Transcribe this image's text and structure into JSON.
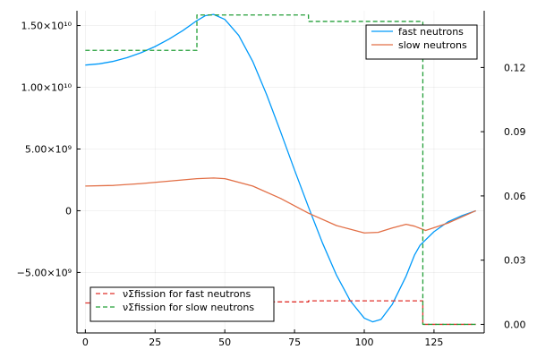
{
  "chart_data": {
    "type": "line",
    "title": "",
    "xlabel": "",
    "ylabel_left": "",
    "ylabel_right": "",
    "grid": true,
    "x_ticks": [
      "0",
      "25",
      "50",
      "75",
      "100",
      "125"
    ],
    "x_tick_values": [
      0,
      25,
      50,
      75,
      100,
      125
    ],
    "xlim": [
      -3,
      143
    ],
    "left_axis": {
      "ylim": [
        -9900000000.0,
        16200000000.0
      ],
      "tick_values": [
        -5000000000.0,
        0,
        5000000000.0,
        10000000000.0,
        15000000000.0
      ],
      "tick_labels": [
        "−5.00×10⁹",
        "0",
        "5.00×10⁹",
        "1.00×10¹⁰",
        "1.50×10¹⁰"
      ]
    },
    "right_axis": {
      "ylim": [
        -0.004,
        0.1465
      ],
      "tick_values": [
        0.0,
        0.03,
        0.06,
        0.09,
        0.12
      ],
      "tick_labels": [
        "0.00",
        "0.03",
        "0.06",
        "0.09",
        "0.12"
      ]
    },
    "legends": [
      {
        "placement": "top-right",
        "entries": [
          {
            "label": "fast neutrons",
            "color": "#009AFA",
            "dash": "solid"
          },
          {
            "label": "slow neutrons",
            "color": "#E26F46",
            "dash": "solid"
          }
        ]
      },
      {
        "placement": "bottom-left",
        "entries": [
          {
            "label": "νΣfission for fast neutrons",
            "color": "#E0312B",
            "dash": "dashed"
          },
          {
            "label": "νΣfission for slow neutrons",
            "color": "#239F38",
            "dash": "dashed"
          }
        ]
      }
    ],
    "series": [
      {
        "name": "fast neutrons",
        "axis": "left",
        "color": "#009AFA",
        "dash": "solid",
        "x": [
          0,
          5,
          10,
          15,
          20,
          25,
          30,
          35,
          40,
          43,
          46,
          50,
          55,
          60,
          65,
          70,
          75,
          80,
          85,
          90,
          95,
          100,
          103,
          106,
          110,
          115,
          118,
          120,
          125,
          130,
          135,
          140
        ],
        "y": [
          11800000000.0,
          11900000000.0,
          12100000000.0,
          12400000000.0,
          12800000000.0,
          13300000000.0,
          13900000000.0,
          14600000000.0,
          15400000000.0,
          15800000000.0,
          15900000000.0,
          15500000000.0,
          14200000000.0,
          12100000000.0,
          9400000000.0,
          6400000000.0,
          3300000000.0,
          300000000.0,
          -2600000000.0,
          -5200000000.0,
          -7300000000.0,
          -8700000000.0,
          -9000000000.0,
          -8800000000.0,
          -7600000000.0,
          -5300000000.0,
          -3600000000.0,
          -2800000000.0,
          -1700000000.0,
          -900000000.0,
          -400000000.0,
          0
        ]
      },
      {
        "name": "slow neutrons",
        "axis": "left",
        "color": "#E26F46",
        "dash": "solid",
        "x": [
          0,
          10,
          20,
          30,
          40,
          46,
          50,
          60,
          70,
          80,
          90,
          100,
          105,
          110,
          115,
          118,
          122,
          130,
          140
        ],
        "y": [
          2000000000.0,
          2050000000.0,
          2200000000.0,
          2400000000.0,
          2600000000.0,
          2650000000.0,
          2600000000.0,
          2000000000.0,
          1000000000.0,
          -200000000.0,
          -1200000000.0,
          -1800000000.0,
          -1750000000.0,
          -1400000000.0,
          -1100000000.0,
          -1250000000.0,
          -1600000000.0,
          -1000000000.0,
          0
        ]
      },
      {
        "name": "νΣfission for fast neutrons",
        "axis": "right",
        "color": "#E0312B",
        "dash": "dashed",
        "x": [
          0,
          40,
          40,
          80,
          80,
          121,
          121,
          140
        ],
        "y": [
          0.01,
          0.01,
          0.0105,
          0.0105,
          0.011,
          0.011,
          0.0,
          0.0
        ]
      },
      {
        "name": "νΣfission for slow neutrons",
        "axis": "right",
        "color": "#239F38",
        "dash": "dashed",
        "x": [
          0,
          40,
          40,
          80,
          80,
          121,
          121,
          140
        ],
        "y": [
          0.128,
          0.128,
          0.1445,
          0.1445,
          0.1415,
          0.1415,
          0.0,
          0.0
        ]
      }
    ]
  }
}
